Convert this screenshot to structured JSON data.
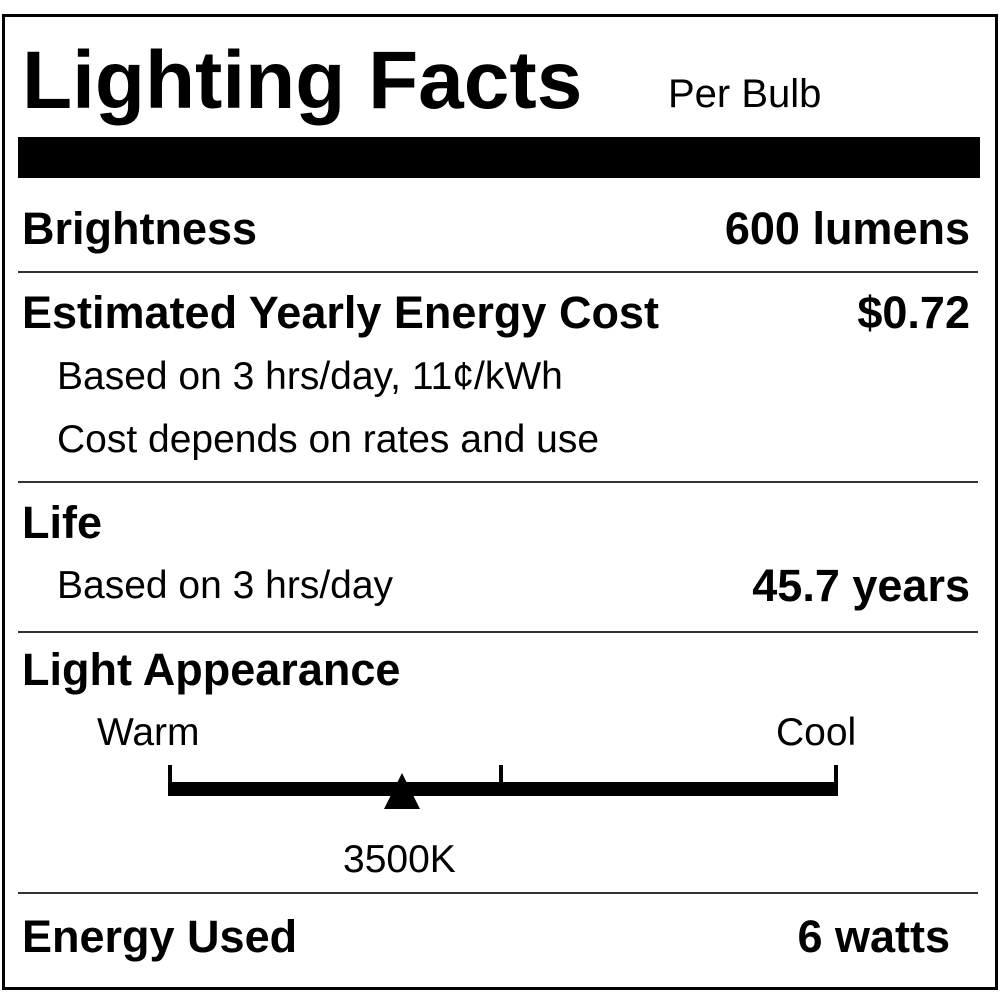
{
  "label": {
    "title": "Lighting Facts",
    "title_suffix": "Per Bulb",
    "brightness": {
      "label": "Brightness",
      "value": "600 lumens"
    },
    "energy_cost": {
      "label": "Estimated Yearly Energy Cost",
      "value": "$0.72",
      "note1": "Based on 3 hrs/day, 11¢/kWh",
      "note2": "Cost depends on rates and use"
    },
    "life": {
      "label": "Life",
      "note": "Based on 3 hrs/day",
      "value": "45.7 years"
    },
    "light_appearance": {
      "label": "Light Appearance",
      "warm_label": "Warm",
      "cool_label": "Cool",
      "value": "3500K",
      "marker_position": 0.35
    },
    "energy_used": {
      "label": "Energy Used",
      "value": "6 watts"
    }
  }
}
